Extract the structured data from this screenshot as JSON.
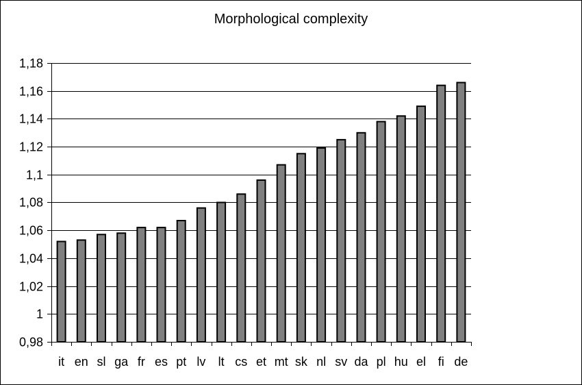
{
  "chart_data": {
    "type": "bar",
    "title": "Morphological complexity",
    "xlabel": "",
    "ylabel": "",
    "categories": [
      "it",
      "en",
      "sl",
      "ga",
      "fr",
      "es",
      "pt",
      "lv",
      "lt",
      "cs",
      "et",
      "mt",
      "sk",
      "nl",
      "sv",
      "da",
      "pl",
      "hu",
      "el",
      "fi",
      "de"
    ],
    "values": [
      1.052,
      1.053,
      1.057,
      1.058,
      1.062,
      1.062,
      1.067,
      1.076,
      1.08,
      1.086,
      1.096,
      1.107,
      1.115,
      1.119,
      1.125,
      1.13,
      1.138,
      1.142,
      1.149,
      1.164,
      1.166
    ],
    "ylim": [
      0.98,
      1.18
    ],
    "yticks": [
      0.98,
      1,
      1.02,
      1.04,
      1.06,
      1.08,
      1.1,
      1.12,
      1.14,
      1.16,
      1.18
    ],
    "ytick_labels": [
      "0,98",
      "1",
      "1,02",
      "1,04",
      "1,06",
      "1,08",
      "1,1",
      "1,12",
      "1,14",
      "1,16",
      "1,18"
    ],
    "grid": true,
    "legend": "none",
    "colors": {
      "bar_fill": "#808080",
      "bar_stroke": "#000000",
      "grid": "#000000"
    }
  }
}
